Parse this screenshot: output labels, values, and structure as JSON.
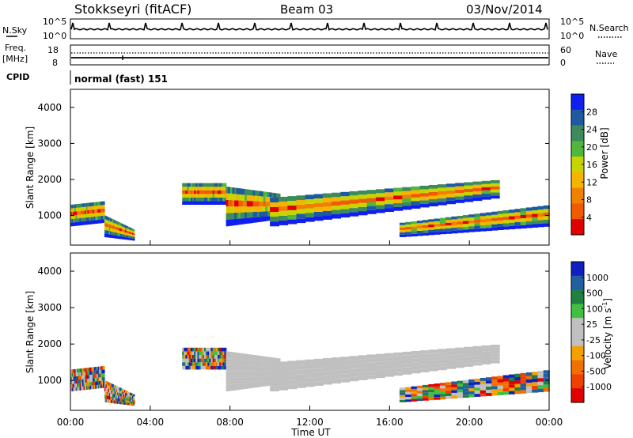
{
  "header": {
    "station": "Stokkseyri (fitACF)",
    "beam": "Beam 03",
    "date": "03/Nov/2014"
  },
  "noise_panel": {
    "left_label": "N.Sky",
    "left_ticks": [
      "10^5",
      "10^0"
    ],
    "right_ticks": [
      "10^5",
      "10^0"
    ],
    "right_label": "N.Search"
  },
  "freq_panel": {
    "left_label_1": "Freq.",
    "left_label_2": "[MHz]",
    "left_ticks": [
      "18",
      "8"
    ],
    "right_ticks": [
      "60",
      "0"
    ],
    "right_label": "Nave"
  },
  "cpid_panel": {
    "label": "CPID",
    "mode": "normal (fast) 151"
  },
  "colors": {
    "power_scale": [
      "#0f1ff0",
      "#1e5aa0",
      "#3d8a5a",
      "#4fb83c",
      "#c8d400",
      "#f4b400",
      "#f08000",
      "#f05a00",
      "#e00000"
    ],
    "velocity_scale": [
      "#1020c0",
      "#2060a0",
      "#208040",
      "#40c040",
      "#c0c0c0",
      "#c0c0c0",
      "#f4a000",
      "#f07000",
      "#f04000",
      "#e00000"
    ],
    "ground_scatter": "#c0c0c0"
  },
  "chart_data": [
    {
      "type": "heatmap",
      "panel": "power",
      "ylabel": "Slant Range [km]",
      "yticks": [
        "4000",
        "3000",
        "2000",
        "1000"
      ],
      "colorbar_label": "Power [dB]",
      "colorbar_ticks": [
        "28",
        "24",
        "20",
        "16",
        "12",
        "8",
        "4"
      ],
      "x_hours": [
        0,
        24
      ],
      "y_range_km": [
        180,
        4500
      ]
    },
    {
      "type": "heatmap",
      "panel": "velocity",
      "ylabel": "Slant Range [km]",
      "yticks": [
        "4000",
        "3000",
        "2000",
        "1000"
      ],
      "colorbar_label": "Velocity [m s",
      "colorbar_label_sup": "-1",
      "colorbar_label_end": "]",
      "colorbar_ticks": [
        "1000",
        "500",
        "100",
        "25",
        "-25",
        "-100",
        "-500",
        "-1000"
      ],
      "x_hours": [
        0,
        24
      ],
      "y_range_km": [
        180,
        4500
      ]
    }
  ],
  "xaxis": {
    "ticks": [
      "00:00",
      "04:00",
      "08:00",
      "12:00",
      "16:00",
      "20:00",
      "00:00"
    ],
    "label": "Time UT"
  }
}
